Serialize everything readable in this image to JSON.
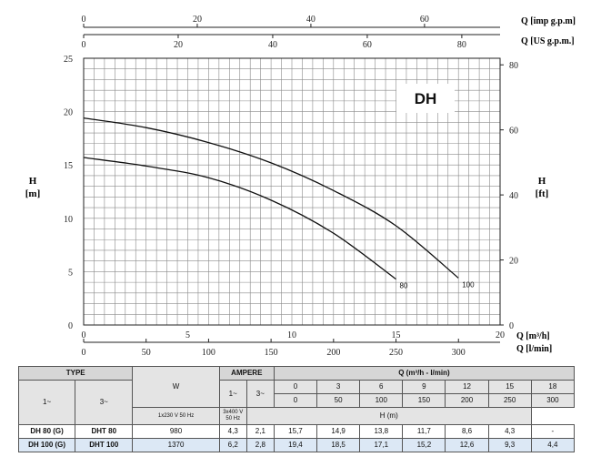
{
  "chart_data": {
    "type": "line",
    "model_label": "DH",
    "y_left": {
      "label_line1": "H",
      "label_line2": "[m]",
      "ylim": [
        0,
        25
      ],
      "ticks": [
        0,
        5,
        10,
        15,
        20,
        25
      ]
    },
    "y_right": {
      "label_line1": "H",
      "label_line2": "[ft]",
      "ylim": [
        0,
        82.02
      ],
      "ticks": [
        0,
        20,
        40,
        60,
        80
      ]
    },
    "x_m3h": {
      "label": "Q [m³/h]",
      "xlim": [
        0,
        20
      ],
      "ticks": [
        0,
        5,
        10,
        15,
        20
      ]
    },
    "x_lmin": {
      "label": "Q [l/min]",
      "xlim": [
        0,
        333.3
      ],
      "ticks": [
        0,
        50,
        100,
        150,
        200,
        250,
        300
      ]
    },
    "x_imp": {
      "label": "Q [imp g.p.m]",
      "xlim": [
        0,
        73.3
      ],
      "ticks": [
        0,
        20,
        40,
        60
      ]
    },
    "x_us": {
      "label": "Q [US g.p.m.]",
      "xlim": [
        0,
        88.1
      ],
      "ticks": [
        0,
        20,
        40,
        60,
        80
      ]
    },
    "series": [
      {
        "name": "80",
        "x": [
          0,
          3,
          6,
          9,
          12,
          15
        ],
        "values": [
          15.7,
          14.9,
          13.8,
          11.7,
          8.6,
          4.3
        ]
      },
      {
        "name": "100",
        "x": [
          0,
          3,
          6,
          9,
          12,
          15,
          18
        ],
        "values": [
          19.4,
          18.5,
          17.1,
          15.2,
          12.6,
          9.3,
          4.4
        ]
      }
    ],
    "grid": true
  },
  "table": {
    "type_header": "TYPE",
    "w_header": "W",
    "ampere_header": "AMPERE",
    "q_header": "Q (m³/h - l/min)",
    "h_header": "H (m)",
    "phase1": "1~",
    "phase3": "3~",
    "amp1": "1~",
    "amp3": "3~",
    "volt1": "1x230 V 50 Hz",
    "volt3": "3x400 V 50 Hz",
    "q_m3h": [
      "0",
      "3",
      "6",
      "9",
      "12",
      "15",
      "18"
    ],
    "q_lmin": [
      "0",
      "50",
      "100",
      "150",
      "200",
      "250",
      "300"
    ],
    "rows": [
      {
        "type1": "DH 80 (G)",
        "type3": "DHT 80",
        "w": "980",
        "a1": "4,3",
        "a3": "2,1",
        "h": [
          "15,7",
          "14,9",
          "13,8",
          "11,7",
          "8,6",
          "4,3",
          "-"
        ]
      },
      {
        "type1": "DH 100 (G)",
        "type3": "DHT 100",
        "w": "1370",
        "a1": "6,2",
        "a3": "2,8",
        "h": [
          "19,4",
          "18,5",
          "17,1",
          "15,2",
          "12,6",
          "9,3",
          "4,4"
        ]
      }
    ]
  }
}
